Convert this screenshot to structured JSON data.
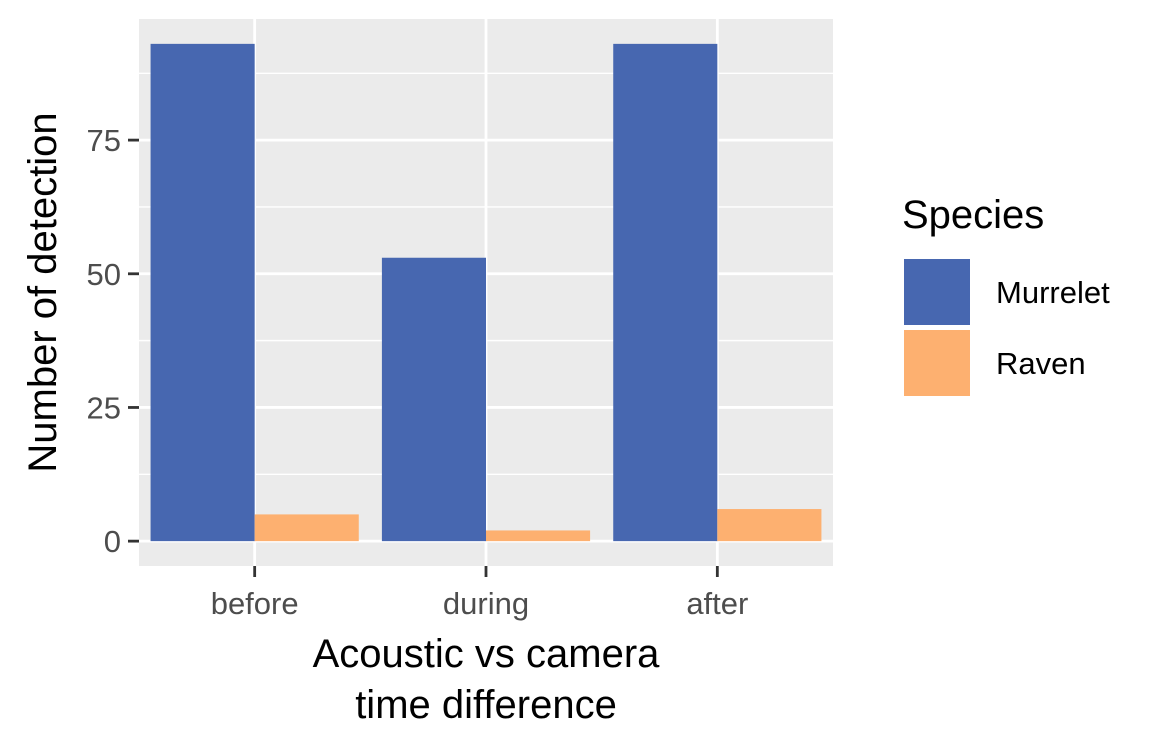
{
  "chart_data": {
    "type": "bar",
    "title": "",
    "xlabel": "Acoustic vs camera time difference",
    "xlabel_lines": [
      "Acoustic vs camera",
      "time difference"
    ],
    "ylabel": "Number of detection",
    "categories": [
      "before",
      "during",
      "after"
    ],
    "series": [
      {
        "name": "Murrelet",
        "values": [
          93,
          53,
          93
        ],
        "color": "#4767b0"
      },
      {
        "name": "Raven",
        "values": [
          5,
          2,
          6
        ],
        "color": "#fdb070"
      }
    ],
    "ylim": [
      -4.65,
      97.65
    ],
    "yticks": [
      0,
      25,
      50,
      75
    ],
    "ytick_labels": [
      "0",
      "25",
      "50",
      "75"
    ],
    "grid": true,
    "panel_background": "#ebebeb",
    "grid_color": "#ffffff",
    "legend": {
      "title": "Species",
      "position": "right"
    }
  }
}
